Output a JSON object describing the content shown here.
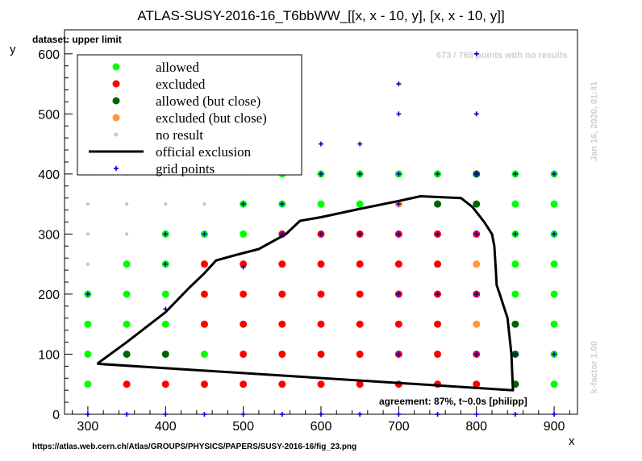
{
  "title": "ATLAS-SUSY-2016-16_T6bbWW_[[x, x - 10, y], [x, x - 10, y]]",
  "dataset_label": "dataset: upper limit",
  "source_url": "https://atlas.web.cern.ch/Atlas/GROUPS/PHYSICS/PAPERS/SUSY-2016-16/fig_23.png",
  "agreement_text": "agreement: 87%, t~0.0s [philipp]",
  "no_results_text": "673 / 765 points with no results",
  "timestamp": "Jan 16, 2020, 01:41",
  "kfactor": "k-factor 1.00",
  "colors": {
    "allowed": "#00ff00",
    "excluded": "#ff0000",
    "allowed_close": "#006400",
    "excluded_close": "#ff9933",
    "no_result": "#c8c8c8",
    "official_exclusion": "#000000",
    "grid_points": "#0000cc"
  },
  "chart_data": {
    "type": "scatter",
    "xlabel": "x",
    "ylabel": "y",
    "xlim": [
      270,
      930
    ],
    "ylim": [
      0,
      640
    ],
    "xticks": [
      300,
      400,
      500,
      600,
      700,
      800,
      900
    ],
    "yticks": [
      0,
      100,
      200,
      300,
      400,
      500,
      600
    ],
    "legend": {
      "position": "top-left",
      "entries": [
        {
          "key": "allowed",
          "label": "allowed"
        },
        {
          "key": "excluded",
          "label": "excluded"
        },
        {
          "key": "allowed_close",
          "label": "allowed (but close)"
        },
        {
          "key": "excluded_close",
          "label": "excluded (but close)"
        },
        {
          "key": "no_result",
          "label": "no result"
        },
        {
          "key": "official_exclusion",
          "label": "official exclusion"
        },
        {
          "key": "grid_points",
          "label": "grid points"
        }
      ]
    },
    "points": [
      {
        "x": 300,
        "y": 50,
        "c": "allowed"
      },
      {
        "x": 350,
        "y": 50,
        "c": "excluded"
      },
      {
        "x": 400,
        "y": 50,
        "c": "excluded"
      },
      {
        "x": 450,
        "y": 50,
        "c": "excluded"
      },
      {
        "x": 500,
        "y": 50,
        "c": "excluded"
      },
      {
        "x": 550,
        "y": 50,
        "c": "excluded"
      },
      {
        "x": 600,
        "y": 50,
        "c": "excluded"
      },
      {
        "x": 650,
        "y": 50,
        "c": "excluded"
      },
      {
        "x": 700,
        "y": 50,
        "c": "excluded"
      },
      {
        "x": 750,
        "y": 50,
        "c": "excluded"
      },
      {
        "x": 800,
        "y": 50,
        "c": "excluded"
      },
      {
        "x": 850,
        "y": 50,
        "c": "allowed_close"
      },
      {
        "x": 900,
        "y": 50,
        "c": "allowed"
      },
      {
        "x": 300,
        "y": 100,
        "c": "allowed"
      },
      {
        "x": 350,
        "y": 100,
        "c": "allowed_close"
      },
      {
        "x": 400,
        "y": 100,
        "c": "allowed_close"
      },
      {
        "x": 450,
        "y": 100,
        "c": "allowed"
      },
      {
        "x": 500,
        "y": 100,
        "c": "excluded"
      },
      {
        "x": 550,
        "y": 100,
        "c": "excluded"
      },
      {
        "x": 600,
        "y": 100,
        "c": "excluded"
      },
      {
        "x": 650,
        "y": 100,
        "c": "excluded"
      },
      {
        "x": 700,
        "y": 100,
        "c": "excluded"
      },
      {
        "x": 750,
        "y": 100,
        "c": "excluded"
      },
      {
        "x": 800,
        "y": 100,
        "c": "excluded"
      },
      {
        "x": 850,
        "y": 100,
        "c": "allowed_close"
      },
      {
        "x": 900,
        "y": 100,
        "c": "allowed"
      },
      {
        "x": 300,
        "y": 150,
        "c": "allowed"
      },
      {
        "x": 350,
        "y": 150,
        "c": "allowed"
      },
      {
        "x": 400,
        "y": 150,
        "c": "allowed"
      },
      {
        "x": 450,
        "y": 150,
        "c": "excluded"
      },
      {
        "x": 500,
        "y": 150,
        "c": "excluded"
      },
      {
        "x": 550,
        "y": 150,
        "c": "excluded"
      },
      {
        "x": 600,
        "y": 150,
        "c": "excluded"
      },
      {
        "x": 650,
        "y": 150,
        "c": "excluded"
      },
      {
        "x": 700,
        "y": 150,
        "c": "excluded"
      },
      {
        "x": 750,
        "y": 150,
        "c": "excluded"
      },
      {
        "x": 800,
        "y": 150,
        "c": "excluded_close"
      },
      {
        "x": 850,
        "y": 150,
        "c": "allowed_close"
      },
      {
        "x": 900,
        "y": 150,
        "c": "allowed"
      },
      {
        "x": 300,
        "y": 200,
        "c": "allowed"
      },
      {
        "x": 350,
        "y": 200,
        "c": "allowed"
      },
      {
        "x": 400,
        "y": 200,
        "c": "allowed"
      },
      {
        "x": 450,
        "y": 200,
        "c": "excluded"
      },
      {
        "x": 500,
        "y": 200,
        "c": "excluded"
      },
      {
        "x": 550,
        "y": 200,
        "c": "excluded"
      },
      {
        "x": 600,
        "y": 200,
        "c": "excluded"
      },
      {
        "x": 650,
        "y": 200,
        "c": "excluded"
      },
      {
        "x": 700,
        "y": 200,
        "c": "excluded"
      },
      {
        "x": 750,
        "y": 200,
        "c": "excluded"
      },
      {
        "x": 800,
        "y": 200,
        "c": "excluded"
      },
      {
        "x": 850,
        "y": 200,
        "c": "allowed"
      },
      {
        "x": 900,
        "y": 200,
        "c": "allowed"
      },
      {
        "x": 300,
        "y": 250,
        "c": "no_result"
      },
      {
        "x": 350,
        "y": 250,
        "c": "allowed"
      },
      {
        "x": 400,
        "y": 250,
        "c": "allowed"
      },
      {
        "x": 450,
        "y": 250,
        "c": "excluded"
      },
      {
        "x": 500,
        "y": 250,
        "c": "excluded"
      },
      {
        "x": 550,
        "y": 250,
        "c": "excluded"
      },
      {
        "x": 600,
        "y": 250,
        "c": "excluded"
      },
      {
        "x": 650,
        "y": 250,
        "c": "excluded"
      },
      {
        "x": 700,
        "y": 250,
        "c": "excluded"
      },
      {
        "x": 750,
        "y": 250,
        "c": "excluded"
      },
      {
        "x": 800,
        "y": 250,
        "c": "excluded_close"
      },
      {
        "x": 850,
        "y": 250,
        "c": "allowed"
      },
      {
        "x": 900,
        "y": 250,
        "c": "allowed"
      },
      {
        "x": 300,
        "y": 300,
        "c": "no_result"
      },
      {
        "x": 350,
        "y": 300,
        "c": "no_result"
      },
      {
        "x": 400,
        "y": 300,
        "c": "allowed"
      },
      {
        "x": 450,
        "y": 300,
        "c": "allowed"
      },
      {
        "x": 500,
        "y": 300,
        "c": "allowed"
      },
      {
        "x": 550,
        "y": 300,
        "c": "excluded"
      },
      {
        "x": 600,
        "y": 300,
        "c": "excluded"
      },
      {
        "x": 650,
        "y": 300,
        "c": "excluded"
      },
      {
        "x": 700,
        "y": 300,
        "c": "excluded"
      },
      {
        "x": 750,
        "y": 300,
        "c": "excluded"
      },
      {
        "x": 800,
        "y": 300,
        "c": "excluded"
      },
      {
        "x": 850,
        "y": 300,
        "c": "allowed"
      },
      {
        "x": 900,
        "y": 300,
        "c": "allowed"
      },
      {
        "x": 300,
        "y": 350,
        "c": "no_result"
      },
      {
        "x": 350,
        "y": 350,
        "c": "no_result"
      },
      {
        "x": 400,
        "y": 350,
        "c": "no_result"
      },
      {
        "x": 450,
        "y": 350,
        "c": "no_result"
      },
      {
        "x": 500,
        "y": 350,
        "c": "allowed"
      },
      {
        "x": 550,
        "y": 350,
        "c": "allowed"
      },
      {
        "x": 600,
        "y": 350,
        "c": "allowed"
      },
      {
        "x": 650,
        "y": 350,
        "c": "allowed"
      },
      {
        "x": 700,
        "y": 350,
        "c": "excluded_close"
      },
      {
        "x": 750,
        "y": 350,
        "c": "allowed_close"
      },
      {
        "x": 800,
        "y": 350,
        "c": "allowed_close"
      },
      {
        "x": 850,
        "y": 350,
        "c": "allowed"
      },
      {
        "x": 900,
        "y": 350,
        "c": "allowed"
      },
      {
        "x": 300,
        "y": 400,
        "c": "no_result"
      },
      {
        "x": 350,
        "y": 400,
        "c": "no_result"
      },
      {
        "x": 400,
        "y": 400,
        "c": "no_result"
      },
      {
        "x": 450,
        "y": 400,
        "c": "no_result"
      },
      {
        "x": 500,
        "y": 400,
        "c": "no_result"
      },
      {
        "x": 550,
        "y": 400,
        "c": "allowed"
      },
      {
        "x": 600,
        "y": 400,
        "c": "allowed"
      },
      {
        "x": 650,
        "y": 400,
        "c": "allowed"
      },
      {
        "x": 700,
        "y": 400,
        "c": "allowed"
      },
      {
        "x": 750,
        "y": 400,
        "c": "allowed"
      },
      {
        "x": 800,
        "y": 400,
        "c": "allowed_close"
      },
      {
        "x": 850,
        "y": 400,
        "c": "allowed"
      },
      {
        "x": 900,
        "y": 400,
        "c": "allowed"
      }
    ],
    "grid_points": [
      [
        300,
        200
      ],
      [
        400,
        300
      ],
      [
        400,
        250
      ],
      [
        400,
        175
      ],
      [
        450,
        300
      ],
      [
        500,
        350
      ],
      [
        500,
        245
      ],
      [
        550,
        350
      ],
      [
        550,
        300
      ],
      [
        600,
        400
      ],
      [
        600,
        300
      ],
      [
        650,
        400
      ],
      [
        650,
        300
      ],
      [
        700,
        400
      ],
      [
        700,
        350
      ],
      [
        700,
        300
      ],
      [
        700,
        200
      ],
      [
        700,
        100
      ],
      [
        750,
        400
      ],
      [
        750,
        300
      ],
      [
        750,
        200
      ],
      [
        800,
        400
      ],
      [
        800,
        300
      ],
      [
        800,
        200
      ],
      [
        800,
        100
      ],
      [
        850,
        400
      ],
      [
        850,
        300
      ],
      [
        850,
        100
      ],
      [
        900,
        400
      ],
      [
        900,
        300
      ],
      [
        900,
        100
      ],
      [
        600,
        450
      ],
      [
        650,
        450
      ],
      [
        700,
        500
      ],
      [
        700,
        550
      ],
      [
        800,
        500
      ],
      [
        800,
        600
      ],
      [
        300,
        0
      ],
      [
        350,
        0
      ],
      [
        400,
        0
      ],
      [
        450,
        0
      ],
      [
        500,
        0
      ],
      [
        550,
        0
      ],
      [
        600,
        0
      ],
      [
        650,
        0
      ],
      [
        700,
        0
      ],
      [
        750,
        0
      ],
      [
        800,
        0
      ],
      [
        850,
        0
      ],
      [
        900,
        0
      ]
    ],
    "official_exclusion": [
      [
        312,
        84
      ],
      [
        350,
        120
      ],
      [
        400,
        170
      ],
      [
        415,
        190
      ],
      [
        430,
        210
      ],
      [
        450,
        235
      ],
      [
        465,
        256
      ],
      [
        490,
        265
      ],
      [
        520,
        275
      ],
      [
        555,
        300
      ],
      [
        573,
        322
      ],
      [
        600,
        328
      ],
      [
        650,
        342
      ],
      [
        700,
        355
      ],
      [
        728,
        363
      ],
      [
        780,
        360
      ],
      [
        795,
        345
      ],
      [
        810,
        320
      ],
      [
        820,
        300
      ],
      [
        823,
        280
      ],
      [
        825,
        240
      ],
      [
        826,
        215
      ],
      [
        830,
        200
      ],
      [
        840,
        160
      ],
      [
        845,
        100
      ],
      [
        847,
        40
      ],
      [
        312,
        84
      ]
    ]
  }
}
